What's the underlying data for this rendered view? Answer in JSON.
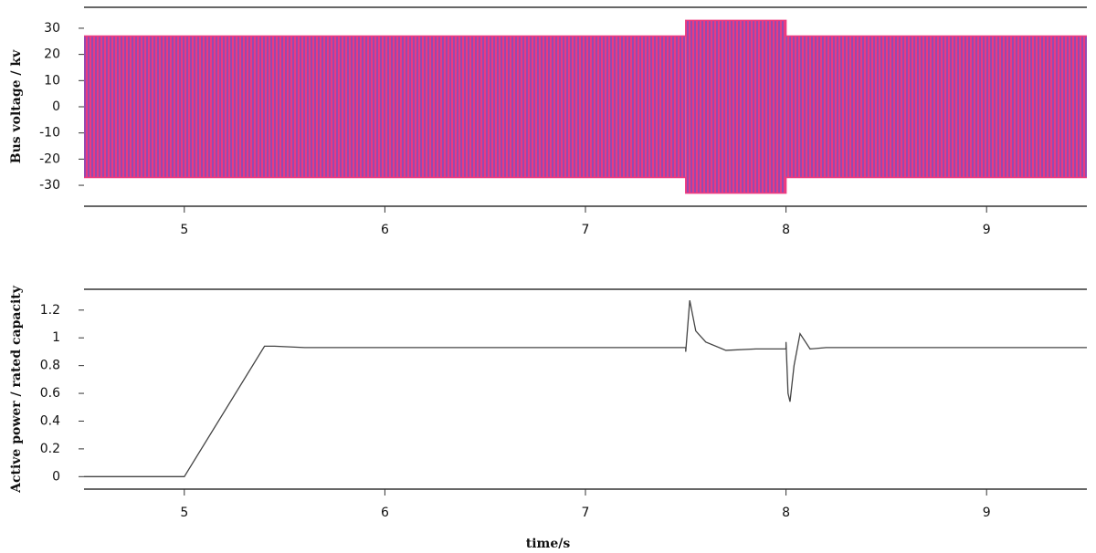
{
  "chart_data": [
    {
      "type": "band",
      "ylabel": "Bus voltage / kv",
      "x": [
        4.5,
        7.5,
        7.5,
        8.0,
        8.0,
        9.5
      ],
      "upper": [
        27,
        27,
        33,
        33,
        27,
        27
      ],
      "lower": [
        -27,
        -27,
        -33,
        -33,
        -27,
        -27
      ],
      "color": "#ec3a80",
      "hatch_color": "#5a55d2",
      "xlim": [
        4.5,
        9.5
      ],
      "xticks": [
        5,
        6,
        7,
        8,
        9
      ],
      "ylim": [
        -38,
        38
      ],
      "yticks": [
        -30,
        -20,
        -10,
        0,
        10,
        20,
        30
      ]
    },
    {
      "type": "line",
      "ylabel": "Active power / rated capacity",
      "xlabel": "time/s",
      "x": [
        4.5,
        5.0,
        5.4,
        5.45,
        5.6,
        7.5,
        7.5,
        7.52,
        7.55,
        7.6,
        7.7,
        7.85,
        8.0,
        8.0,
        8.01,
        8.02,
        8.04,
        8.07,
        8.12,
        8.2,
        9.5
      ],
      "values": [
        0,
        0,
        0.94,
        0.94,
        0.93,
        0.93,
        0.9,
        1.27,
        1.05,
        0.97,
        0.91,
        0.92,
        0.92,
        0.97,
        0.6,
        0.54,
        0.8,
        1.03,
        0.92,
        0.93,
        0.93
      ],
      "color": "#444444",
      "xlim": [
        4.5,
        9.5
      ],
      "xticks": [
        5,
        6,
        7,
        8,
        9
      ],
      "ylim": [
        -0.09,
        1.35
      ],
      "yticks": [
        0,
        0.2,
        0.4,
        0.6,
        0.8,
        1,
        1.2
      ]
    }
  ]
}
